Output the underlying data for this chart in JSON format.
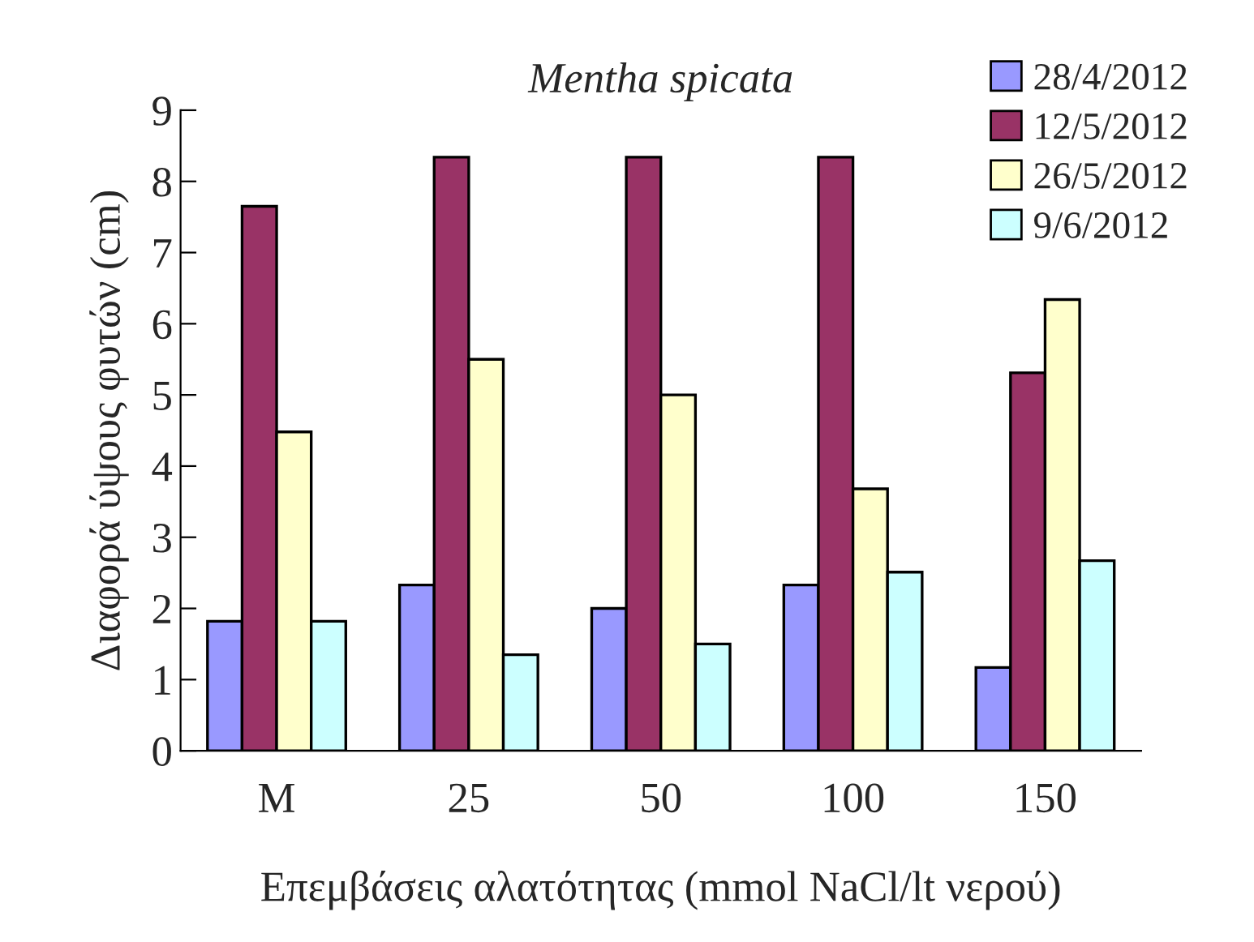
{
  "chart_data": {
    "type": "bar",
    "title": "Mentha spicata",
    "xlabel": "Επεμβάσεις αλατότητας (mmol NaCl/lt νερού)",
    "ylabel": "Διαφορά ύψους φυτών (cm)",
    "categories": [
      "M",
      "25",
      "50",
      "100",
      "150"
    ],
    "series": [
      {
        "name": "28/4/2012",
        "color": "#9999ff",
        "values": [
          1.82,
          2.33,
          2.0,
          2.33,
          1.17
        ]
      },
      {
        "name": "12/5/2012",
        "color": "#993366",
        "values": [
          7.65,
          8.34,
          8.34,
          8.34,
          5.31
        ]
      },
      {
        "name": "26/5/2012",
        "color": "#ffffcc",
        "values": [
          4.48,
          5.5,
          5.0,
          3.68,
          6.34
        ]
      },
      {
        "name": "9/6/2012",
        "color": "#ccffff",
        "values": [
          1.82,
          1.35,
          1.5,
          2.51,
          2.67
        ]
      }
    ],
    "ylim": [
      0,
      9
    ],
    "yticks": [
      0,
      1,
      2,
      3,
      4,
      5,
      6,
      7,
      8,
      9
    ],
    "grid": false,
    "legend": "top right"
  }
}
